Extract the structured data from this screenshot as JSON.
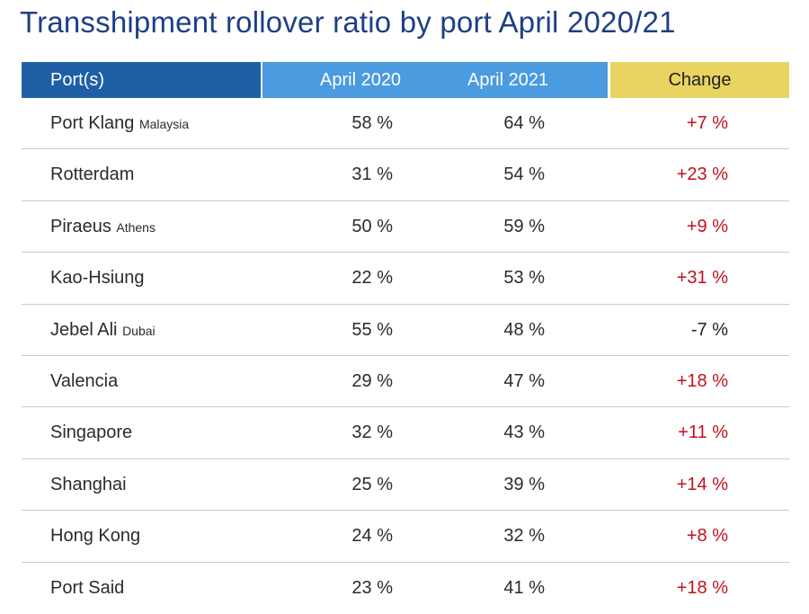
{
  "title": "Transshipment rollover ratio by port April 2020/21",
  "chart_data": {
    "type": "table",
    "title": "Transshipment rollover ratio by port April 2020/21",
    "columns": [
      "Port(s)",
      "April 2020",
      "April 2021",
      "Change"
    ],
    "header_colors": {
      "port": "#1f5fa6",
      "years": "#4a9be0",
      "change": "#e9d361"
    },
    "positive_change_color": "#c0121f",
    "rows": [
      {
        "port": "Port Klang",
        "sub": "Malaysia",
        "april_2020": "58 %",
        "april_2021": "64 %",
        "change": "+7 %"
      },
      {
        "port": "Rotterdam",
        "sub": "",
        "april_2020": "31 %",
        "april_2021": "54 %",
        "change": "+23 %"
      },
      {
        "port": "Piraeus",
        "sub": "Athens",
        "april_2020": "50 %",
        "april_2021": "59 %",
        "change": "+9 %"
      },
      {
        "port": "Kao-Hsiung",
        "sub": "",
        "april_2020": "22 %",
        "april_2021": "53 %",
        "change": "+31 %"
      },
      {
        "port": "Jebel Ali",
        "sub": "Dubai",
        "april_2020": "55 %",
        "april_2021": "48 %",
        "change": "-7 %"
      },
      {
        "port": "Valencia",
        "sub": "",
        "april_2020": "29 %",
        "april_2021": "47 %",
        "change": "+18 %"
      },
      {
        "port": "Singapore",
        "sub": "",
        "april_2020": "32 %",
        "april_2021": "43 %",
        "change": "+11 %"
      },
      {
        "port": "Shanghai",
        "sub": "",
        "april_2020": "25 %",
        "april_2021": "39 %",
        "change": "+14 %"
      },
      {
        "port": "Hong Kong",
        "sub": "",
        "april_2020": "24 %",
        "april_2021": "32 %",
        "change": "+8 %"
      },
      {
        "port": "Port Said",
        "sub": "",
        "april_2020": "23 %",
        "april_2021": "41 %",
        "change": "+18 %"
      }
    ]
  }
}
